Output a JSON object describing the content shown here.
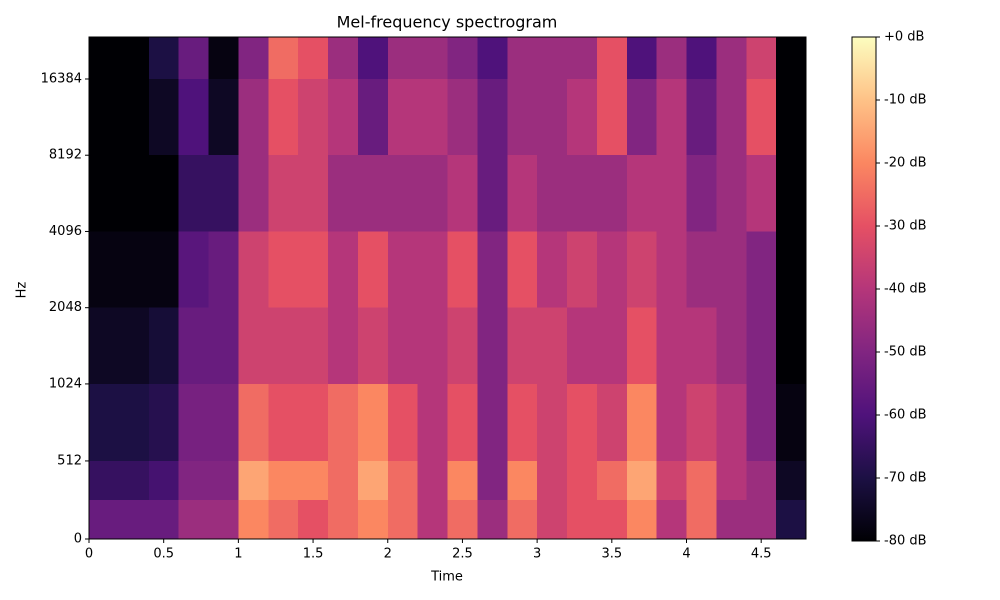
{
  "chart_data": {
    "type": "heatmap",
    "title": "Mel-frequency spectrogram",
    "xlabel": "Time",
    "ylabel": "Hz",
    "xlim": [
      0,
      4.8
    ],
    "xticks": [
      0,
      0.5,
      1,
      1.5,
      2,
      2.5,
      3,
      3.5,
      4,
      4.5
    ],
    "ylim": [
      0,
      24000
    ],
    "yscale": "symlog",
    "linthresh": 1000,
    "base": 2,
    "yticks": [
      0,
      512,
      1024,
      2048,
      4096,
      8192,
      16384
    ],
    "xbins": [
      0,
      0.2,
      0.4,
      0.6,
      0.8,
      1,
      1.2,
      1.4,
      1.6,
      1.8,
      2,
      2.2,
      2.4,
      2.6,
      2.8,
      3,
      3.2,
      3.4,
      3.6,
      3.8,
      4,
      4.2,
      4.4,
      4.6,
      4.8
    ],
    "ybins": [
      0,
      256,
      512,
      1024,
      2048,
      4096,
      8192,
      16384,
      24000
    ],
    "values": [
      [
        -55,
        -55,
        -55,
        -45,
        -45,
        -20,
        -25,
        -30,
        -25,
        -20,
        -25,
        -40,
        -25,
        -45,
        -25,
        -35,
        -30,
        -30,
        -20,
        -40,
        -25,
        -45,
        -45,
        -70
      ],
      [
        -65,
        -65,
        -62,
        -50,
        -50,
        -15,
        -20,
        -20,
        -25,
        -15,
        -25,
        -40,
        -20,
        -50,
        -20,
        -35,
        -30,
        -25,
        -15,
        -35,
        -25,
        -40,
        -45,
        -75
      ],
      [
        -70,
        -70,
        -68,
        -52,
        -52,
        -25,
        -30,
        -30,
        -25,
        -20,
        -30,
        -40,
        -30,
        -50,
        -30,
        -35,
        -30,
        -35,
        -20,
        -40,
        -35,
        -40,
        -50,
        -78
      ],
      [
        -75,
        -75,
        -72,
        -55,
        -55,
        -35,
        -35,
        -35,
        -40,
        -35,
        -40,
        -40,
        -35,
        -50,
        -35,
        -35,
        -40,
        -40,
        -30,
        -40,
        -40,
        -45,
        -50,
        -80
      ],
      [
        -78,
        -78,
        -78,
        -58,
        -55,
        -35,
        -30,
        -30,
        -40,
        -30,
        -40,
        -40,
        -30,
        -50,
        -30,
        -40,
        -35,
        -40,
        -35,
        -40,
        -45,
        -45,
        -50,
        -80
      ],
      [
        -80,
        -80,
        -80,
        -65,
        -65,
        -45,
        -35,
        -35,
        -45,
        -45,
        -45,
        -45,
        -40,
        -55,
        -40,
        -45,
        -45,
        -45,
        -40,
        -40,
        -50,
        -45,
        -40,
        -80
      ],
      [
        -80,
        -80,
        -75,
        -60,
        -75,
        -45,
        -30,
        -35,
        -40,
        -55,
        -40,
        -40,
        -45,
        -55,
        -45,
        -45,
        -40,
        -30,
        -50,
        -40,
        -55,
        -45,
        -30,
        -80
      ],
      [
        -80,
        -80,
        -70,
        -55,
        -78,
        -50,
        -25,
        -30,
        -45,
        -60,
        -45,
        -45,
        -50,
        -60,
        -45,
        -45,
        -45,
        -30,
        -60,
        -45,
        -60,
        -45,
        -35,
        -80
      ]
    ],
    "colormap": "magma",
    "clim": [
      -80,
      0
    ],
    "cticks": [
      {
        "value": 0,
        "label": "+0 dB"
      },
      {
        "value": -10,
        "label": "-10 dB"
      },
      {
        "value": -20,
        "label": "-20 dB"
      },
      {
        "value": -30,
        "label": "-30 dB"
      },
      {
        "value": -40,
        "label": "-40 dB"
      },
      {
        "value": -50,
        "label": "-50 dB"
      },
      {
        "value": -60,
        "label": "-60 dB"
      },
      {
        "value": -70,
        "label": "-70 dB"
      },
      {
        "value": -80,
        "label": "-80 dB"
      }
    ]
  }
}
